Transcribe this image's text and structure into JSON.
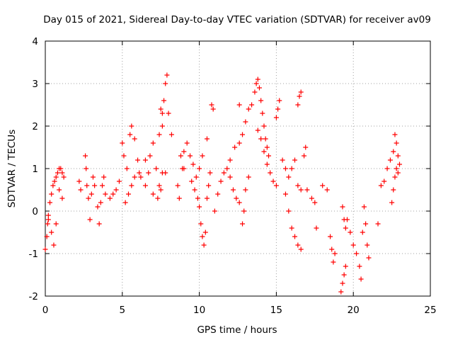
{
  "chart_data": {
    "type": "scatter",
    "title": "Day 015 of 2021, Sidereal Day-to-day VTEC variation (SDTVAR) for receiver av09",
    "xlabel": "GPS time / hours",
    "ylabel": "SDTVAR / TECUs",
    "xlim": [
      0,
      25
    ],
    "ylim": [
      -2,
      4
    ],
    "xticks": [
      "0",
      "5",
      "10",
      "15",
      "20",
      "25"
    ],
    "yticks": [
      "-2",
      "-1",
      "0",
      "1",
      "2",
      "3",
      "4"
    ],
    "grid": true,
    "marker": "+",
    "color": "#ff0000",
    "series": [
      {
        "name": "av09",
        "points": [
          [
            0.0,
            -0.9
          ],
          [
            0.1,
            -0.6
          ],
          [
            0.15,
            -0.3
          ],
          [
            0.2,
            -0.1
          ],
          [
            0.3,
            0.2
          ],
          [
            0.4,
            0.4
          ],
          [
            0.5,
            0.6
          ],
          [
            0.6,
            0.7
          ],
          [
            0.7,
            0.8
          ],
          [
            0.8,
            0.9
          ],
          [
            0.9,
            1.0
          ],
          [
            1.0,
            1.0
          ],
          [
            1.1,
            0.9
          ],
          [
            1.2,
            0.8
          ],
          [
            0.2,
            -0.2
          ],
          [
            0.4,
            -0.5
          ],
          [
            0.55,
            -0.8
          ],
          [
            0.7,
            -0.3
          ],
          [
            0.9,
            0.5
          ],
          [
            1.1,
            0.3
          ],
          [
            2.2,
            0.7
          ],
          [
            2.3,
            0.5
          ],
          [
            2.6,
            1.3
          ],
          [
            2.65,
            1.0
          ],
          [
            2.7,
            0.6
          ],
          [
            2.8,
            0.3
          ],
          [
            2.9,
            -0.2
          ],
          [
            3.0,
            0.4
          ],
          [
            3.1,
            0.8
          ],
          [
            3.2,
            0.6
          ],
          [
            3.4,
            0.1
          ],
          [
            3.5,
            -0.3
          ],
          [
            3.6,
            0.2
          ],
          [
            3.7,
            0.6
          ],
          [
            3.8,
            0.8
          ],
          [
            3.9,
            0.4
          ],
          [
            4.2,
            0.3
          ],
          [
            4.4,
            0.4
          ],
          [
            4.6,
            0.5
          ],
          [
            4.8,
            0.7
          ],
          [
            5.0,
            1.6
          ],
          [
            5.1,
            1.3
          ],
          [
            5.3,
            1.0
          ],
          [
            5.5,
            1.8
          ],
          [
            5.6,
            2.0
          ],
          [
            5.8,
            1.7
          ],
          [
            6.0,
            1.2
          ],
          [
            6.1,
            0.9
          ],
          [
            5.2,
            0.2
          ],
          [
            5.4,
            0.4
          ],
          [
            5.6,
            0.6
          ],
          [
            5.8,
            0.8
          ],
          [
            6.2,
            0.8
          ],
          [
            6.5,
            0.6
          ],
          [
            6.8,
            1.3
          ],
          [
            7.0,
            1.6
          ],
          [
            7.2,
            1.0
          ],
          [
            7.4,
            0.6
          ],
          [
            7.5,
            0.5
          ],
          [
            7.6,
            0.9
          ],
          [
            7.8,
            0.9
          ],
          [
            6.5,
            1.2
          ],
          [
            6.7,
            0.9
          ],
          [
            7.0,
            0.4
          ],
          [
            7.3,
            0.3
          ],
          [
            7.5,
            2.4
          ],
          [
            7.6,
            2.3
          ],
          [
            7.7,
            2.6
          ],
          [
            7.8,
            3.0
          ],
          [
            7.9,
            3.2
          ],
          [
            7.4,
            1.8
          ],
          [
            7.6,
            2.0
          ],
          [
            8.0,
            2.3
          ],
          [
            8.2,
            1.8
          ],
          [
            8.6,
            0.6
          ],
          [
            8.7,
            0.3
          ],
          [
            8.9,
            1.0
          ],
          [
            9.0,
            1.4
          ],
          [
            9.2,
            1.6
          ],
          [
            9.4,
            1.3
          ],
          [
            9.6,
            1.1
          ],
          [
            9.8,
            0.8
          ],
          [
            8.8,
            1.3
          ],
          [
            9.0,
            1.0
          ],
          [
            9.5,
            0.7
          ],
          [
            9.7,
            0.5
          ],
          [
            9.9,
            0.3
          ],
          [
            10.0,
            1.0
          ],
          [
            10.2,
            1.3
          ],
          [
            10.5,
            1.7
          ],
          [
            10.0,
            0.1
          ],
          [
            10.1,
            -0.3
          ],
          [
            10.2,
            -0.6
          ],
          [
            10.3,
            -0.8
          ],
          [
            10.4,
            -0.5
          ],
          [
            10.5,
            0.3
          ],
          [
            10.6,
            0.6
          ],
          [
            10.7,
            0.9
          ],
          [
            10.8,
            2.5
          ],
          [
            10.9,
            2.4
          ],
          [
            11.0,
            0.0
          ],
          [
            11.2,
            0.4
          ],
          [
            11.4,
            0.7
          ],
          [
            11.6,
            0.9
          ],
          [
            11.8,
            1.0
          ],
          [
            12.0,
            0.8
          ],
          [
            12.2,
            0.5
          ],
          [
            12.4,
            0.3
          ],
          [
            12.6,
            0.2
          ],
          [
            12.8,
            -0.3
          ],
          [
            12.9,
            0.0
          ],
          [
            13.0,
            0.5
          ],
          [
            13.2,
            0.8
          ],
          [
            12.0,
            1.2
          ],
          [
            12.3,
            1.5
          ],
          [
            12.6,
            1.6
          ],
          [
            12.8,
            1.8
          ],
          [
            13.0,
            2.1
          ],
          [
            13.2,
            2.4
          ],
          [
            13.4,
            2.5
          ],
          [
            12.6,
            2.5
          ],
          [
            13.6,
            2.8
          ],
          [
            13.7,
            3.0
          ],
          [
            13.8,
            3.1
          ],
          [
            13.9,
            2.9
          ],
          [
            14.0,
            2.6
          ],
          [
            14.1,
            2.3
          ],
          [
            14.2,
            2.0
          ],
          [
            14.3,
            1.7
          ],
          [
            14.4,
            1.5
          ],
          [
            14.5,
            1.3
          ],
          [
            13.8,
            1.9
          ],
          [
            14.0,
            1.7
          ],
          [
            14.2,
            1.4
          ],
          [
            14.4,
            1.1
          ],
          [
            14.6,
            0.9
          ],
          [
            14.8,
            0.7
          ],
          [
            15.0,
            0.6
          ],
          [
            15.0,
            2.2
          ],
          [
            15.1,
            2.4
          ],
          [
            15.2,
            2.6
          ],
          [
            15.4,
            1.2
          ],
          [
            15.6,
            1.0
          ],
          [
            15.8,
            0.8
          ],
          [
            16.0,
            1.0
          ],
          [
            16.2,
            1.2
          ],
          [
            16.4,
            2.5
          ],
          [
            16.5,
            2.7
          ],
          [
            16.6,
            2.8
          ],
          [
            15.6,
            0.4
          ],
          [
            15.8,
            0.0
          ],
          [
            16.0,
            -0.4
          ],
          [
            16.2,
            -0.6
          ],
          [
            16.4,
            -0.8
          ],
          [
            16.6,
            -0.9
          ],
          [
            16.4,
            0.6
          ],
          [
            16.6,
            0.5
          ],
          [
            16.8,
            1.3
          ],
          [
            16.9,
            1.5
          ],
          [
            17.0,
            0.5
          ],
          [
            17.3,
            0.3
          ],
          [
            17.5,
            0.2
          ],
          [
            17.6,
            -0.4
          ],
          [
            18.0,
            0.6
          ],
          [
            18.3,
            0.5
          ],
          [
            18.5,
            -0.6
          ],
          [
            18.6,
            -0.9
          ],
          [
            18.7,
            -1.2
          ],
          [
            18.8,
            -1.0
          ],
          [
            19.2,
            -1.9
          ],
          [
            19.3,
            -1.7
          ],
          [
            19.4,
            -1.5
          ],
          [
            19.5,
            -1.3
          ],
          [
            19.3,
            0.1
          ],
          [
            19.4,
            -0.2
          ],
          [
            19.5,
            -0.4
          ],
          [
            19.6,
            -0.2
          ],
          [
            19.8,
            -0.5
          ],
          [
            20.0,
            -0.8
          ],
          [
            20.2,
            -1.0
          ],
          [
            20.4,
            -1.3
          ],
          [
            20.5,
            -1.6
          ],
          [
            20.6,
            -0.5
          ],
          [
            20.7,
            0.1
          ],
          [
            20.8,
            -0.3
          ],
          [
            20.9,
            -0.8
          ],
          [
            21.0,
            -1.1
          ],
          [
            21.6,
            -0.3
          ],
          [
            21.8,
            0.6
          ],
          [
            22.0,
            0.7
          ],
          [
            22.2,
            1.0
          ],
          [
            22.4,
            1.2
          ],
          [
            22.6,
            1.4
          ],
          [
            22.7,
            1.8
          ],
          [
            22.8,
            1.6
          ],
          [
            22.9,
            1.3
          ],
          [
            22.5,
            0.2
          ],
          [
            22.6,
            0.5
          ],
          [
            22.7,
            0.8
          ],
          [
            22.8,
            1.0
          ],
          [
            22.9,
            0.9
          ],
          [
            23.0,
            1.1
          ]
        ]
      }
    ]
  }
}
